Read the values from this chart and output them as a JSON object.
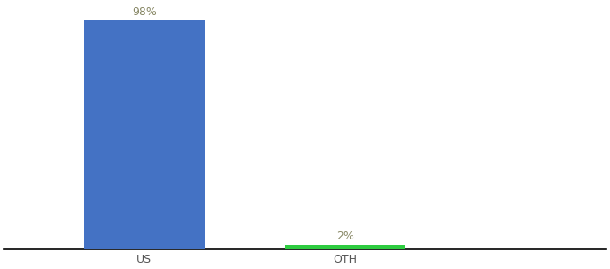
{
  "categories": [
    "US",
    "OTH"
  ],
  "values": [
    98,
    2
  ],
  "bar_colors": [
    "#4472c4",
    "#2ecc40"
  ],
  "label_colors": [
    "#888866",
    "#888866"
  ],
  "labels": [
    "98%",
    "2%"
  ],
  "background_color": "#ffffff",
  "ylim": [
    0,
    105
  ],
  "bar_width": 0.6,
  "label_fontsize": 9,
  "tick_fontsize": 9,
  "spine_color": "#000000"
}
